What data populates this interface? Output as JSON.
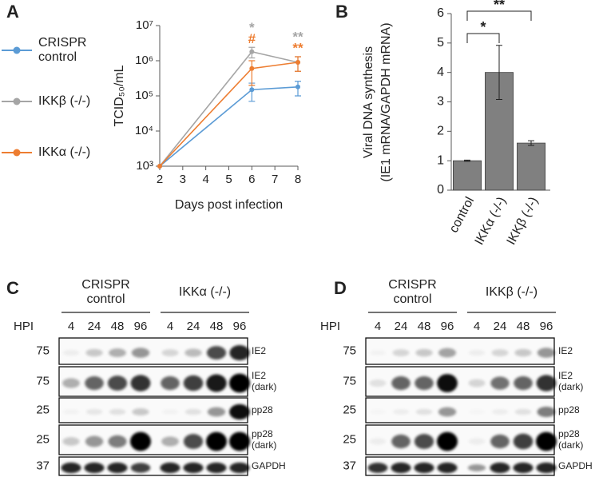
{
  "chart_data": [
    {
      "type": "line",
      "label": "A",
      "ylabel": "TCID₅₀/mL",
      "xlabel": "Days post infection",
      "ylog": true,
      "xlim": [
        2,
        8
      ],
      "xticks": [
        2,
        3,
        4,
        5,
        6,
        7,
        8
      ],
      "ylim": [
        1000,
        10000000
      ],
      "yticks": [
        {
          "value": 1000,
          "label": "10³"
        },
        {
          "value": 10000,
          "label": "10⁴"
        },
        {
          "value": 100000,
          "label": "10⁵"
        },
        {
          "value": 1000000,
          "label": "10⁶"
        },
        {
          "value": 10000000,
          "label": "10⁷"
        }
      ],
      "x": [
        2,
        6,
        8
      ],
      "series": [
        {
          "name": "CRISPR control",
          "color": "#5b9bd5",
          "values": [
            1000,
            150000,
            180000
          ],
          "errors": [
            null,
            80000,
            80000
          ]
        },
        {
          "name": "IKKβ (-/-)",
          "color": "#a5a5a5",
          "values": [
            1000,
            1800000,
            900000
          ],
          "errors": [
            null,
            600000,
            400000
          ]
        },
        {
          "name": "IKKα (-/-)",
          "color": "#ed7d31",
          "values": [
            1000,
            600000,
            900000
          ],
          "errors": [
            null,
            400000,
            400000
          ]
        }
      ],
      "annotations": [
        {
          "text": "*",
          "x": 6,
          "color": "#a5a5a5"
        },
        {
          "text": "#",
          "x": 6,
          "color": "#ed7d31"
        },
        {
          "text": "**",
          "x": 8,
          "color": "#a5a5a5"
        },
        {
          "text": "**",
          "x": 8,
          "color": "#ed7d31"
        }
      ]
    },
    {
      "type": "bar",
      "label": "B",
      "ylabel": [
        "Viral DNA synthesis",
        "(IE1 mRNA/GAPDH mRNA)"
      ],
      "categories": [
        "control",
        "IKKα (-/-)",
        "IKKβ (-/-)"
      ],
      "values": [
        1,
        4,
        1.6
      ],
      "errors": [
        0.02,
        0.92,
        0.08
      ],
      "color": "#808080",
      "ylim": [
        0,
        6
      ],
      "yticks": [
        0,
        1,
        2,
        3,
        4,
        5,
        6
      ],
      "brackets": [
        {
          "from": 0,
          "to": 1,
          "text": "*"
        },
        {
          "from": 0,
          "to": 2,
          "text": "**"
        }
      ]
    }
  ],
  "blots": [
    {
      "label": "C",
      "hpi_label": "HPI",
      "groups": [
        "CRISPR control",
        "IKKα (-/-)"
      ],
      "hpi": [
        4,
        24,
        48,
        96,
        4,
        24,
        48,
        96
      ],
      "rows": [
        {
          "mw": 75,
          "name": "IE2",
          "bands": [
            0.05,
            0.2,
            0.3,
            0.4,
            0.15,
            0.25,
            0.7,
            0.85
          ]
        },
        {
          "mw": 75,
          "name": "IE2 (dark)",
          "bands": [
            0.3,
            0.6,
            0.7,
            0.8,
            0.6,
            0.75,
            0.9,
            1
          ]
        },
        {
          "mw": 25,
          "name": "pp28",
          "bands": [
            0.03,
            0.08,
            0.1,
            0.2,
            0.03,
            0.1,
            0.4,
            0.95
          ]
        },
        {
          "mw": 25,
          "name": "pp28 (dark)",
          "bands": [
            0.2,
            0.4,
            0.5,
            1,
            0.3,
            0.7,
            1,
            1
          ]
        },
        {
          "mw": 37,
          "name": "GAPDH",
          "bands": [
            0.85,
            0.85,
            0.85,
            0.75,
            0.85,
            0.85,
            0.85,
            0.85
          ]
        }
      ]
    },
    {
      "label": "D",
      "hpi_label": "HPI",
      "groups": [
        "CRISPR control",
        "IKKβ (-/-)"
      ],
      "hpi": [
        4,
        24,
        48,
        96,
        4,
        24,
        48,
        96
      ],
      "rows": [
        {
          "mw": 75,
          "name": "IE2",
          "bands": [
            0.03,
            0.15,
            0.2,
            0.35,
            0.05,
            0.15,
            0.2,
            0.4
          ]
        },
        {
          "mw": 75,
          "name": "IE2 (dark)",
          "bands": [
            0.1,
            0.6,
            0.6,
            0.95,
            0.15,
            0.55,
            0.6,
            0.8
          ]
        },
        {
          "mw": 25,
          "name": "pp28",
          "bands": [
            0.02,
            0.05,
            0.1,
            0.4,
            0.02,
            0.05,
            0.1,
            0.5
          ]
        },
        {
          "mw": 25,
          "name": "pp28 (dark)",
          "bands": [
            0.05,
            0.6,
            0.7,
            1,
            0.05,
            0.6,
            0.75,
            1
          ]
        },
        {
          "mw": 37,
          "name": "GAPDH",
          "bands": [
            0.8,
            0.85,
            0.85,
            0.85,
            0.4,
            0.85,
            0.85,
            0.85
          ]
        }
      ]
    }
  ]
}
